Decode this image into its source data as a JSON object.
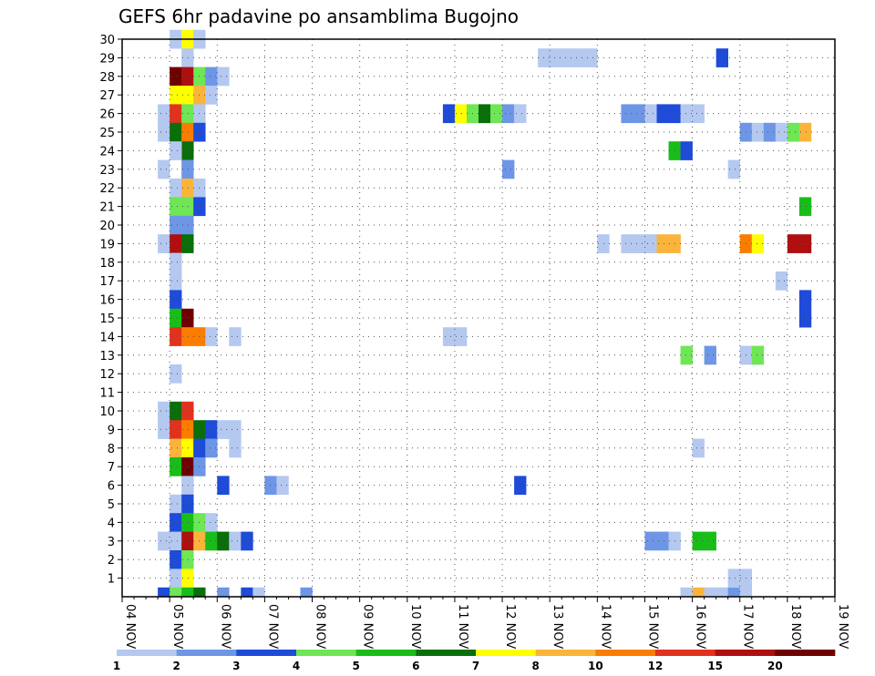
{
  "chart_data": {
    "type": "heatmap",
    "title": "GEFS 6hr padavine po ansamblima Bugojno",
    "xlabel": "",
    "ylabel": "",
    "x_ticks": [
      "04 NOV",
      "05 NOV",
      "06 NOV",
      "07 NOV",
      "08 NOV",
      "09 NOV",
      "10 NOV",
      "11 NOV",
      "12 NOV",
      "13 NOV",
      "14 NOV",
      "15 NOV",
      "16 NOV",
      "17 NOV",
      "18 NOV",
      "19 NOV"
    ],
    "y_ticks": [
      "1",
      "2",
      "3",
      "4",
      "5",
      "6",
      "7",
      "8",
      "9",
      "10",
      "11",
      "12",
      "13",
      "14",
      "15",
      "16",
      "17",
      "18",
      "19",
      "20",
      "21",
      "22",
      "23",
      "24",
      "25",
      "26",
      "27",
      "28",
      "29",
      "30"
    ],
    "x_unit": "6-hour steps since 04 NOV 00Z",
    "ylim": [
      0,
      30
    ],
    "grid": true,
    "legend": {
      "placement": "bottom",
      "bin_labels": [
        "1",
        "2",
        "3",
        "4",
        "5",
        "6",
        "7",
        "8",
        "10",
        "12",
        "15",
        "20"
      ],
      "colors": [
        "#b4c8f0",
        "#6e96e6",
        "#1e4bd7",
        "#6ee655",
        "#19bd19",
        "#0a6e0a",
        "#ffff00",
        "#fab43c",
        "#fa7d00",
        "#e1321e",
        "#af0f0f",
        "#6e0000"
      ]
    },
    "cells": [
      [
        4,
        30,
        1
      ],
      [
        5,
        30,
        7
      ],
      [
        6,
        30,
        1
      ],
      [
        5,
        29,
        1
      ],
      [
        4,
        28,
        12
      ],
      [
        5,
        28,
        11
      ],
      [
        6,
        28,
        4
      ],
      [
        7,
        28,
        2
      ],
      [
        8,
        28,
        1
      ],
      [
        4,
        27,
        7
      ],
      [
        5,
        27,
        7
      ],
      [
        6,
        27,
        8
      ],
      [
        7,
        27,
        1
      ],
      [
        3,
        26,
        1
      ],
      [
        4,
        26,
        10
      ],
      [
        5,
        26,
        4
      ],
      [
        6,
        26,
        1
      ],
      [
        3,
        25,
        1
      ],
      [
        4,
        25,
        6
      ],
      [
        5,
        25,
        9
      ],
      [
        6,
        25,
        3
      ],
      [
        5,
        24,
        6
      ],
      [
        4,
        24,
        1
      ],
      [
        5,
        23,
        2
      ],
      [
        3,
        23,
        1
      ],
      [
        4,
        22,
        1
      ],
      [
        5,
        22,
        8
      ],
      [
        6,
        22,
        1
      ],
      [
        4,
        21,
        4
      ],
      [
        5,
        21,
        4
      ],
      [
        6,
        21,
        3
      ],
      [
        4,
        20,
        2
      ],
      [
        5,
        20,
        2
      ],
      [
        3,
        19,
        1
      ],
      [
        4,
        19,
        11
      ],
      [
        5,
        19,
        6
      ],
      [
        4,
        18,
        1
      ],
      [
        4,
        17,
        1
      ],
      [
        4,
        16,
        3
      ],
      [
        4,
        15,
        5
      ],
      [
        5,
        15,
        12
      ],
      [
        4,
        14,
        10
      ],
      [
        5,
        14,
        9
      ],
      [
        6,
        14,
        9
      ],
      [
        7,
        14,
        1
      ],
      [
        9,
        14,
        1
      ],
      [
        4,
        12,
        1
      ],
      [
        3,
        10,
        1
      ],
      [
        4,
        10,
        6
      ],
      [
        5,
        10,
        10
      ],
      [
        3,
        9,
        1
      ],
      [
        4,
        9,
        10
      ],
      [
        5,
        9,
        9
      ],
      [
        6,
        9,
        6
      ],
      [
        7,
        9,
        3
      ],
      [
        8,
        9,
        1
      ],
      [
        9,
        9,
        1
      ],
      [
        4,
        8,
        8
      ],
      [
        5,
        8,
        7
      ],
      [
        6,
        8,
        3
      ],
      [
        7,
        8,
        2
      ],
      [
        9,
        8,
        1
      ],
      [
        4,
        7,
        5
      ],
      [
        5,
        7,
        12
      ],
      [
        6,
        7,
        2
      ],
      [
        5,
        6,
        1
      ],
      [
        8,
        6,
        3
      ],
      [
        12,
        6,
        2
      ],
      [
        13,
        6,
        1
      ],
      [
        4,
        5,
        1
      ],
      [
        5,
        5,
        3
      ],
      [
        4,
        4,
        3
      ],
      [
        5,
        4,
        5
      ],
      [
        6,
        4,
        4
      ],
      [
        7,
        4,
        1
      ],
      [
        3,
        3,
        1
      ],
      [
        4,
        3,
        1
      ],
      [
        5,
        3,
        11
      ],
      [
        6,
        3,
        8
      ],
      [
        7,
        3,
        5
      ],
      [
        8,
        3,
        6
      ],
      [
        9,
        3,
        1
      ],
      [
        10,
        3,
        3
      ],
      [
        4,
        2,
        3
      ],
      [
        5,
        2,
        4
      ],
      [
        4,
        1,
        1
      ],
      [
        5,
        1,
        7
      ],
      [
        3,
        0,
        3
      ],
      [
        4,
        0,
        4
      ],
      [
        5,
        0,
        5
      ],
      [
        6,
        0,
        6
      ],
      [
        8,
        0,
        2
      ],
      [
        10,
        0,
        3
      ],
      [
        11,
        0,
        1
      ],
      [
        15,
        0,
        2
      ],
      [
        27,
        26,
        3
      ],
      [
        28,
        26,
        7
      ],
      [
        29,
        26,
        4
      ],
      [
        30,
        26,
        6
      ],
      [
        31,
        26,
        4
      ],
      [
        32,
        26,
        2
      ],
      [
        33,
        26,
        1
      ],
      [
        27,
        14,
        1
      ],
      [
        28,
        14,
        1
      ],
      [
        32,
        23,
        2
      ],
      [
        33,
        6,
        3
      ],
      [
        35,
        29,
        1
      ],
      [
        36,
        29,
        1
      ],
      [
        37,
        29,
        1
      ],
      [
        38,
        29,
        1
      ],
      [
        39,
        29,
        1
      ],
      [
        42,
        26,
        2
      ],
      [
        43,
        26,
        2
      ],
      [
        44,
        26,
        1
      ],
      [
        45,
        26,
        3
      ],
      [
        46,
        26,
        3
      ],
      [
        47,
        26,
        1
      ],
      [
        48,
        26,
        1
      ],
      [
        40,
        19,
        1
      ],
      [
        42,
        19,
        1
      ],
      [
        43,
        19,
        1
      ],
      [
        44,
        19,
        1
      ],
      [
        45,
        19,
        8
      ],
      [
        46,
        19,
        8
      ],
      [
        44,
        3,
        2
      ],
      [
        45,
        3,
        2
      ],
      [
        46,
        3,
        1
      ],
      [
        48,
        3,
        5
      ],
      [
        49,
        3,
        5
      ],
      [
        46,
        24,
        5
      ],
      [
        47,
        24,
        3
      ],
      [
        47,
        13,
        4
      ],
      [
        48,
        8,
        1
      ],
      [
        49,
        13,
        2
      ],
      [
        47,
        0,
        1
      ],
      [
        48,
        0,
        8
      ],
      [
        49,
        0,
        1
      ],
      [
        50,
        0,
        1
      ],
      [
        51,
        0,
        2
      ],
      [
        52,
        0,
        1
      ],
      [
        50,
        29,
        3
      ],
      [
        51,
        1,
        1
      ],
      [
        52,
        1,
        1
      ],
      [
        51,
        23,
        1
      ],
      [
        52,
        13,
        1
      ],
      [
        53,
        13,
        4
      ],
      [
        52,
        25,
        2
      ],
      [
        53,
        25,
        1
      ],
      [
        54,
        25,
        2
      ],
      [
        55,
        25,
        1
      ],
      [
        56,
        25,
        4
      ],
      [
        57,
        25,
        8
      ],
      [
        52,
        19,
        9
      ],
      [
        53,
        19,
        7
      ],
      [
        55,
        17,
        1
      ],
      [
        56,
        19,
        11
      ],
      [
        57,
        19,
        11
      ],
      [
        57,
        21,
        5
      ],
      [
        57,
        16,
        3
      ],
      [
        57,
        15,
        3
      ]
    ]
  }
}
